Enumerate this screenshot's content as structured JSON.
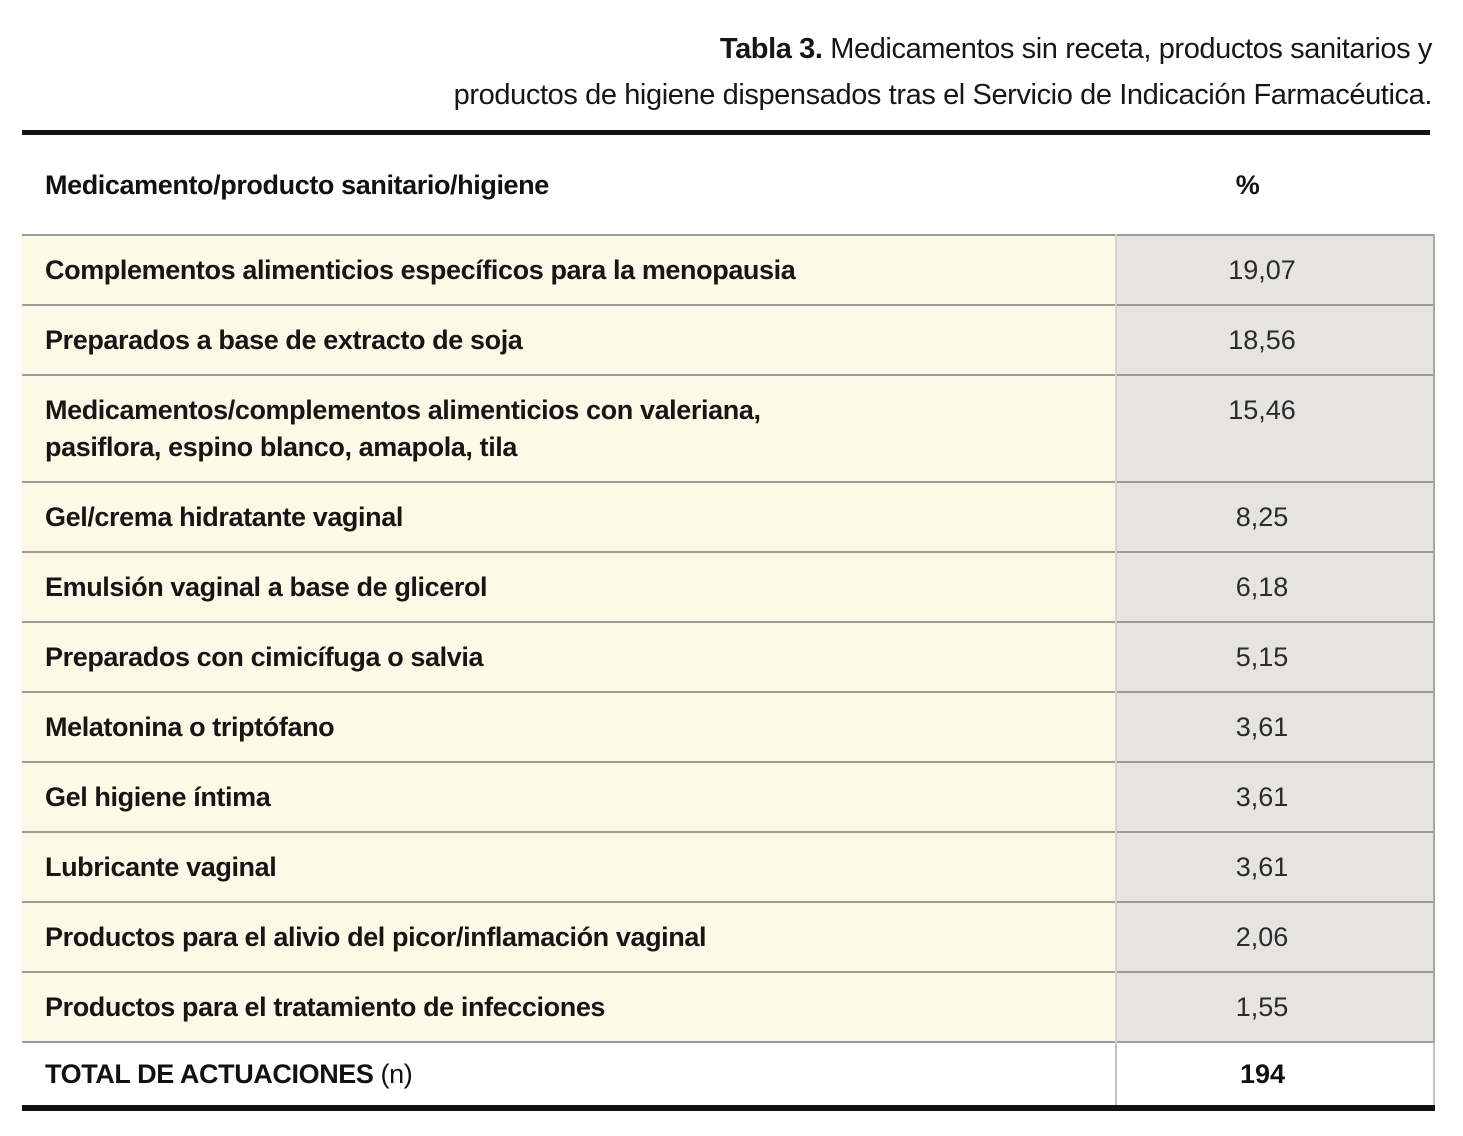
{
  "caption": {
    "prefix": "Tabla 3.",
    "line1": " Medicamentos sin receta, productos sanitarios y",
    "line2": "productos de higiene dispensados tras el Servicio de Indicación Farmacéutica."
  },
  "table": {
    "col1_header": "Medicamento/producto sanitario/higiene",
    "col2_header": "%",
    "rows": [
      {
        "name": "Complementos alimenticios específicos para la menopausia",
        "pct": "19,07"
      },
      {
        "name": "Preparados a base de extracto de soja",
        "pct": "18,56"
      },
      {
        "name": "Medicamentos/complementos alimenticios con valeriana,\npasiflora, espino blanco, amapola, tila",
        "pct": "15,46"
      },
      {
        "name": "Gel/crema hidratante vaginal",
        "pct": "8,25"
      },
      {
        "name": "Emulsión vaginal a base de glicerol",
        "pct": "6,18"
      },
      {
        "name": "Preparados con cimicífuga o salvia",
        "pct": "5,15"
      },
      {
        "name": "Melatonina o triptófano",
        "pct": "3,61"
      },
      {
        "name": "Gel higiene íntima",
        "pct": "3,61"
      },
      {
        "name": "Lubricante vaginal",
        "pct": "3,61"
      },
      {
        "name": "Productos para el alivio del picor/inflamación vaginal",
        "pct": "2,06"
      },
      {
        "name": "Productos para el tratamiento de infecciones",
        "pct": "1,55"
      }
    ],
    "total": {
      "label": "TOTAL DE ACTUACIONES",
      "label_suffix": "(n)",
      "value": "194"
    }
  },
  "colors": {
    "name_column_bg": "#fcfae6",
    "value_column_bg": "#e5e4df",
    "rule": "#121212",
    "row_separator": "#9b9b97",
    "text": "#161616"
  }
}
